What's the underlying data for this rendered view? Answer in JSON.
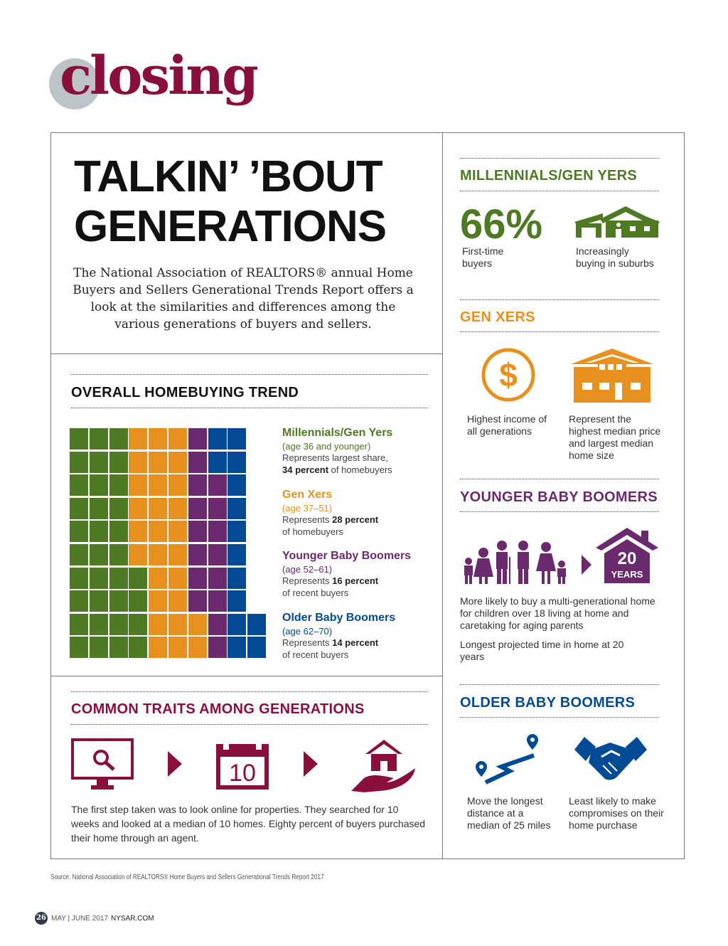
{
  "colors": {
    "maroon": "#8a0f3c",
    "green": "#4e7a24",
    "orange": "#e8901e",
    "purple": "#6b2a6e",
    "blue": "#024a93",
    "logo_circle": "#bcc4c8"
  },
  "logo": "closing",
  "title_line1": "TALKIN’ ’BOUT",
  "title_line2": "GENERATIONS",
  "intro": "The National Association of REALTORS® annual Home Buyers and Sellers Generational Trends Report offers a look at the similarities and differences among the various generations of buyers and sellers.",
  "overall": {
    "heading": "OVERALL HOMEBUYING TREND",
    "legend": [
      {
        "name": "Millennials/Gen Yers",
        "age": "(age 36 and younger)",
        "pre": "Represents largest share,",
        "pct": "34 percent",
        "post": "of homebuyers"
      },
      {
        "name": "Gen Xers",
        "age": "(age 37–51)",
        "pre": "Represents",
        "pct": "28 percent",
        "post": "of homebuyers"
      },
      {
        "name": "Younger Baby Boomers",
        "age": "(age 52–61)",
        "pre": "Represents",
        "pct": "16 percent",
        "post": "of recent buyers"
      },
      {
        "name": "Older Baby Boomers",
        "age": "(age 62–70)",
        "pre": "Represents",
        "pct": "14 percent",
        "post": "of recent buyers"
      }
    ]
  },
  "chart_data": {
    "type": "waffle",
    "grid": "10x10",
    "categories": [
      "Millennials/Gen Yers",
      "Gen Xers",
      "Younger Baby Boomers",
      "Older Baby Boomers"
    ],
    "values": [
      34,
      28,
      16,
      14
    ],
    "colors": [
      "#4e7a24",
      "#e8901e",
      "#6b2a6e",
      "#024a93"
    ]
  },
  "common": {
    "heading": "COMMON TRAITS AMONG GENERATIONS",
    "calendar_number": "10",
    "text": "The first step taken was to look online for properties. They searched for 10 weeks and looked at a median of 10 homes. Eighty percent of buyers purchased their home through an agent."
  },
  "millennials": {
    "heading": "MILLENNIALS/GEN YERS",
    "stat": "66%",
    "stat_label": "First-time buyers",
    "house_label": "Increasingly buying in suburbs"
  },
  "genx": {
    "heading": "GEN XERS",
    "income_label": "Highest income of all generations",
    "home_label": "Represent the highest median price and largest median home size"
  },
  "ybb": {
    "heading": "YOUNGER BABY BOOMERS",
    "house_num": "20",
    "house_unit": "YEARS",
    "text1": "More likely to buy a multi-generational home for children over 18 living at home and caretaking for aging parents",
    "text2": "Longest projected time in home at 20 years"
  },
  "obb": {
    "heading": "OLDER BABY BOOMERS",
    "distance_label": "Move the longest distance at a median of 25 miles",
    "handshake_label": "Least likely to make compromises on their home purchase"
  },
  "source": "Source: National Association of REALTORS® Home Buyers and Sellers Generational Trends Report 2017",
  "footer": {
    "page": "26",
    "issue": "MAY | JUNE 2017",
    "site": "NYSAR.COM"
  }
}
